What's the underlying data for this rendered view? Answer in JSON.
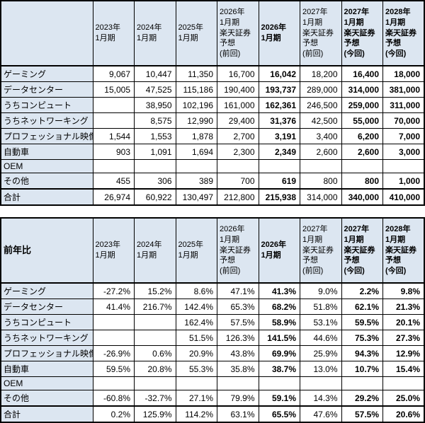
{
  "colors": {
    "header_bg": "#dce6f1",
    "cell_bg": "#ffffff",
    "border": "#000000",
    "text": "#000000"
  },
  "chart_data": [
    {
      "type": "table",
      "name": "segment-revenue-table",
      "corner_label": "",
      "bold_columns": [
        4,
        6,
        7
      ],
      "columns": [
        {
          "label_lines": [
            "2023年",
            "1月期"
          ],
          "bold": false
        },
        {
          "label_lines": [
            "2024年",
            "1月期"
          ],
          "bold": false
        },
        {
          "label_lines": [
            "2025年",
            "1月期"
          ],
          "bold": false
        },
        {
          "label_lines": [
            "2026年",
            "1月期",
            "楽天証券",
            "予想",
            "(前回)"
          ],
          "bold": false
        },
        {
          "label_lines": [
            "2026年",
            "1月期"
          ],
          "bold": true
        },
        {
          "label_lines": [
            "2027年",
            "1月期",
            "楽天証券",
            "予想",
            "(前回)"
          ],
          "bold": false
        },
        {
          "label_lines": [
            "2027年",
            "1月期",
            "楽天証券",
            "予想",
            "(今回)"
          ],
          "bold": true
        },
        {
          "label_lines": [
            "2028年",
            "1月期",
            "楽天証券",
            "予想",
            "(今回)"
          ],
          "bold": true
        }
      ],
      "rows": [
        {
          "label": "ゲーミング",
          "values": [
            "9,067",
            "10,447",
            "11,350",
            "16,700",
            "16,042",
            "18,200",
            "16,400",
            "18,000"
          ],
          "total": false
        },
        {
          "label": "データセンター",
          "values": [
            "15,005",
            "47,525",
            "115,186",
            "190,400",
            "193,737",
            "289,000",
            "314,000",
            "381,000"
          ],
          "total": false
        },
        {
          "label": "うちコンピュート",
          "values": [
            "",
            "38,950",
            "102,196",
            "161,000",
            "162,361",
            "246,500",
            "259,000",
            "311,000"
          ],
          "total": false
        },
        {
          "label": "うちネットワーキング",
          "values": [
            "",
            "8,575",
            "12,990",
            "29,400",
            "31,376",
            "42,500",
            "55,000",
            "70,000"
          ],
          "total": false
        },
        {
          "label": "プロフェッショナル映像",
          "values": [
            "1,544",
            "1,553",
            "1,878",
            "2,700",
            "3,191",
            "3,400",
            "6,200",
            "7,000"
          ],
          "total": false
        },
        {
          "label": "自動車",
          "values": [
            "903",
            "1,091",
            "1,694",
            "2,300",
            "2,349",
            "2,600",
            "2,600",
            "3,000"
          ],
          "total": false
        },
        {
          "label": "OEM",
          "values": [
            "",
            "",
            "",
            "",
            "",
            "",
            "",
            ""
          ],
          "total": false
        },
        {
          "label": "その他",
          "values": [
            "455",
            "306",
            "389",
            "700",
            "619",
            "800",
            "800",
            "1,000"
          ],
          "total": false
        },
        {
          "label": "合計",
          "values": [
            "26,974",
            "60,922",
            "130,497",
            "212,800",
            "215,938",
            "314,000",
            "340,000",
            "410,000"
          ],
          "total": true
        }
      ]
    },
    {
      "type": "table",
      "name": "yoy-change-table",
      "corner_label": "前年比",
      "bold_columns": [
        4,
        6,
        7
      ],
      "columns": [
        {
          "label_lines": [
            "2023年",
            "1月期"
          ],
          "bold": false
        },
        {
          "label_lines": [
            "2024年",
            "1月期"
          ],
          "bold": false
        },
        {
          "label_lines": [
            "2025年",
            "1月期"
          ],
          "bold": false
        },
        {
          "label_lines": [
            "2026年",
            "1月期",
            "楽天証券",
            "予想",
            "(前回)"
          ],
          "bold": false
        },
        {
          "label_lines": [
            "2026年",
            "1月期"
          ],
          "bold": true
        },
        {
          "label_lines": [
            "2027年",
            "1月期",
            "楽天証券",
            "予想",
            "(前回)"
          ],
          "bold": false
        },
        {
          "label_lines": [
            "2027年",
            "1月期",
            "楽天証券",
            "予想",
            "(今回)"
          ],
          "bold": true
        },
        {
          "label_lines": [
            "2028年",
            "1月期",
            "楽天証券",
            "予想",
            "(今回)"
          ],
          "bold": true
        }
      ],
      "rows": [
        {
          "label": "ゲーミング",
          "values": [
            "-27.2%",
            "15.2%",
            "8.6%",
            "47.1%",
            "41.3%",
            "9.0%",
            "2.2%",
            "9.8%"
          ],
          "total": false
        },
        {
          "label": "データセンター",
          "values": [
            "41.4%",
            "216.7%",
            "142.4%",
            "65.3%",
            "68.2%",
            "51.8%",
            "62.1%",
            "21.3%"
          ],
          "total": false
        },
        {
          "label": "うちコンピュート",
          "values": [
            "",
            "",
            "162.4%",
            "57.5%",
            "58.9%",
            "53.1%",
            "59.5%",
            "20.1%"
          ],
          "total": false
        },
        {
          "label": "うちネットワーキング",
          "values": [
            "",
            "",
            "51.5%",
            "126.3%",
            "141.5%",
            "44.6%",
            "75.3%",
            "27.3%"
          ],
          "total": false
        },
        {
          "label": "プロフェッショナル映像",
          "values": [
            "-26.9%",
            "0.6%",
            "20.9%",
            "43.8%",
            "69.9%",
            "25.9%",
            "94.3%",
            "12.9%"
          ],
          "total": false
        },
        {
          "label": "自動車",
          "values": [
            "59.5%",
            "20.8%",
            "55.3%",
            "35.8%",
            "38.7%",
            "13.0%",
            "10.7%",
            "15.4%"
          ],
          "total": false
        },
        {
          "label": "OEM",
          "values": [
            "",
            "",
            "",
            "",
            "",
            "",
            "",
            ""
          ],
          "total": false
        },
        {
          "label": "その他",
          "values": [
            "-60.8%",
            "-32.7%",
            "27.1%",
            "79.9%",
            "59.1%",
            "14.3%",
            "29.2%",
            "25.0%"
          ],
          "total": false
        },
        {
          "label": "合計",
          "values": [
            "0.2%",
            "125.9%",
            "114.2%",
            "63.1%",
            "65.5%",
            "47.6%",
            "57.5%",
            "20.6%"
          ],
          "total": true
        }
      ]
    }
  ]
}
